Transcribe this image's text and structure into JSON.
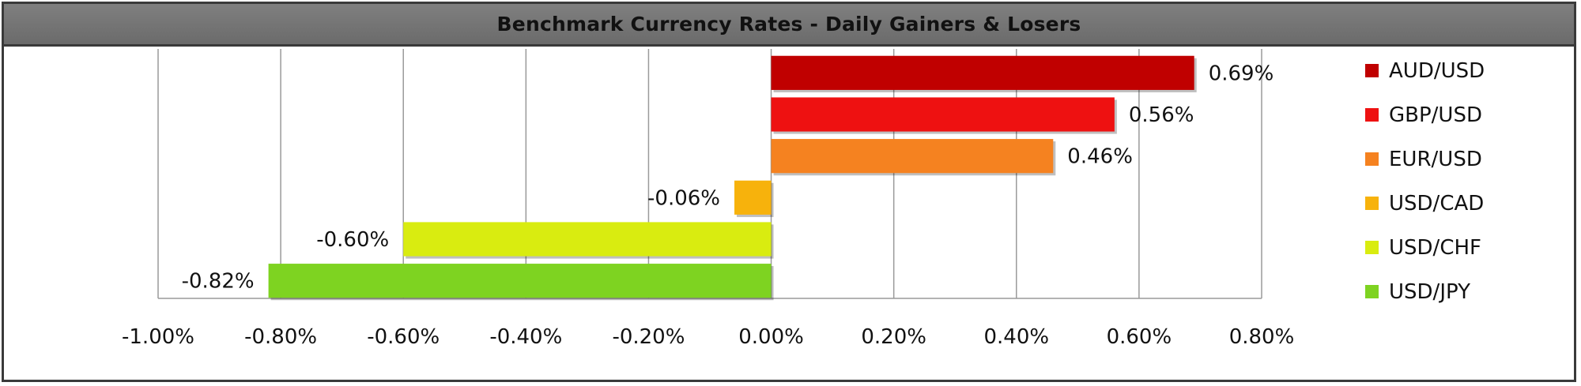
{
  "chart_data": {
    "type": "bar",
    "orientation": "horizontal",
    "title": "Benchmark Currency Rates - Daily Gainers & Losers",
    "xlabel": "",
    "ylabel": "",
    "xlim": [
      -1.0,
      0.8
    ],
    "x_ticks": [
      -1.0,
      -0.8,
      -0.6,
      -0.4,
      -0.2,
      0.0,
      0.2,
      0.4,
      0.6,
      0.8
    ],
    "x_tick_labels": [
      "-1.00%",
      "-0.80%",
      "-0.60%",
      "-0.40%",
      "-0.20%",
      "0.00%",
      "0.20%",
      "0.40%",
      "0.60%",
      "0.80%"
    ],
    "grid": "vertical",
    "legend_position": "right",
    "categories": [
      "AUD/USD",
      "GBP/USD",
      "EUR/USD",
      "USD/CAD",
      "USD/CHF",
      "USD/JPY"
    ],
    "values": [
      0.69,
      0.56,
      0.46,
      -0.06,
      -0.6,
      -0.82
    ],
    "value_labels": [
      "0.69%",
      "0.56%",
      "0.46%",
      "-0.06%",
      "-0.60%",
      "-0.82%"
    ],
    "colors": [
      "#c00000",
      "#ee1111",
      "#f58220",
      "#f7b20c",
      "#d9ec10",
      "#7ed321"
    ]
  }
}
